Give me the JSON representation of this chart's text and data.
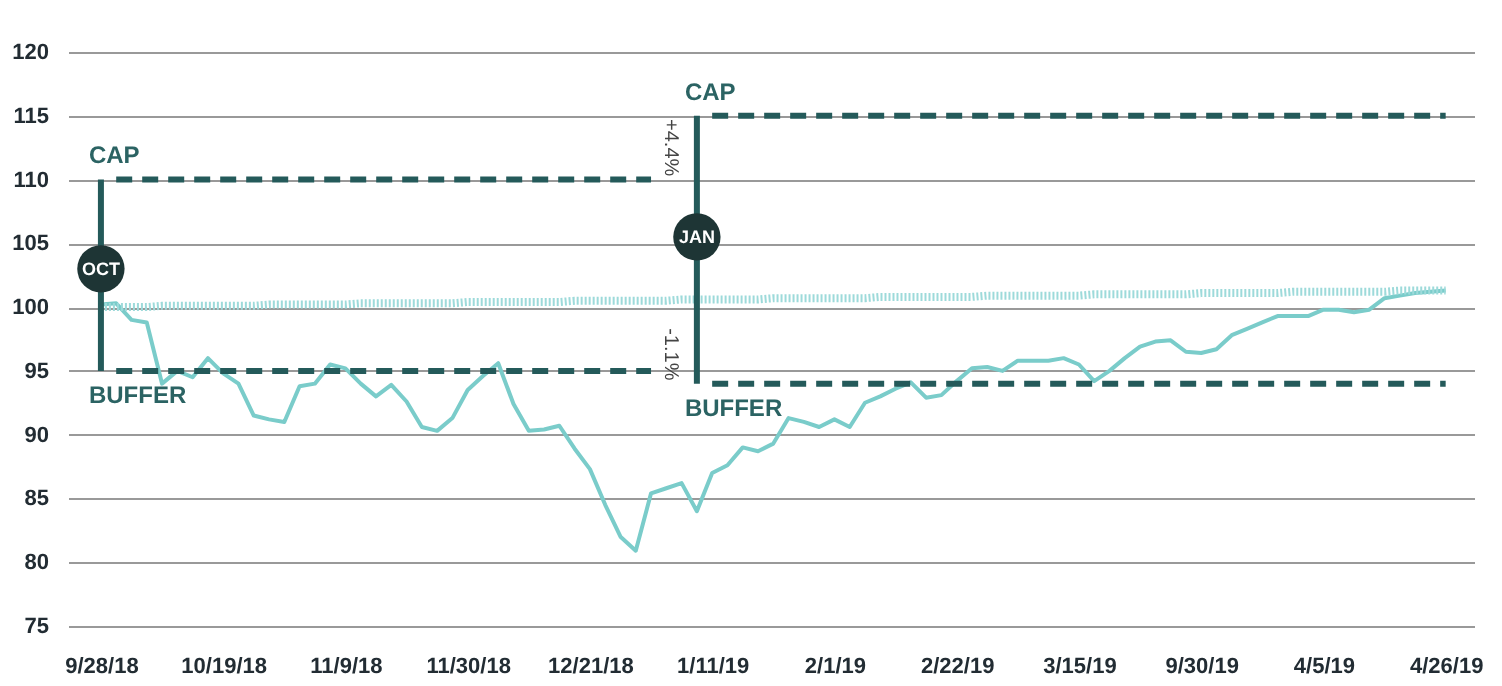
{
  "chart_data": {
    "type": "line",
    "categories": [
      "9/28/18",
      null,
      null,
      null,
      null,
      null,
      null,
      null,
      "10/19/18",
      null,
      null,
      null,
      null,
      null,
      null,
      null,
      "11/9/18",
      null,
      null,
      null,
      null,
      null,
      null,
      null,
      "11/30/18",
      null,
      null,
      null,
      null,
      null,
      null,
      null,
      "12/21/18",
      null,
      null,
      null,
      null,
      null,
      null,
      null,
      "1/11/19",
      null,
      null,
      null,
      null,
      null,
      null,
      null,
      "2/1/19",
      null,
      null,
      null,
      null,
      null,
      null,
      null,
      "2/22/19",
      null,
      null,
      null,
      null,
      null,
      null,
      null,
      "3/15/19",
      null,
      null,
      null,
      null,
      null,
      null,
      null,
      "9/30/19",
      null,
      null,
      null,
      null,
      null,
      null,
      null,
      "4/5/19",
      null,
      null,
      null,
      null,
      null,
      null,
      null,
      "4/26/19"
    ],
    "ylim": [
      75,
      120
    ],
    "yticks": [
      75,
      80,
      85,
      90,
      95,
      100,
      105,
      110,
      115,
      120
    ],
    "grid": "y",
    "series": [
      {
        "color": "#7accca",
        "line_style": "solid",
        "values": [
          100.2,
          100.3,
          99,
          98.8,
          94,
          95,
          94.5,
          96,
          94.8,
          94,
          91.5,
          91.2,
          91,
          93.8,
          94,
          95.5,
          95.2,
          94,
          93,
          93.9,
          92.6,
          90.6,
          90.3,
          91.3,
          93.5,
          94.6,
          95.6,
          92.4,
          90.3,
          90.4,
          90.7,
          88.9,
          87.3,
          84.5,
          82,
          80.9,
          85.4,
          85.8,
          86.2,
          84,
          87,
          87.6,
          89,
          88.7,
          89.3,
          91.3,
          91,
          90.6,
          91.2,
          90.6,
          92.5,
          93,
          93.6,
          94.1,
          92.9,
          93.1,
          94.2,
          95.2,
          95.3,
          95,
          95.8,
          95.8,
          95.8,
          96,
          95.5,
          94.2,
          95,
          96,
          96.9,
          97.3,
          97.4,
          96.5,
          96.4,
          96.7,
          97.8,
          98.3,
          98.8,
          99.3,
          99.3,
          99.3,
          99.8,
          99.8,
          99.6,
          99.8,
          100.7,
          100.9,
          101.1,
          101.2,
          101.3
        ]
      },
      {
        "color": "#9ddada",
        "line_style": "dotted",
        "values": [
          100,
          100,
          100,
          100,
          100.1,
          100.1,
          100.1,
          100.1,
          100.1,
          100.1,
          100.1,
          100.2,
          100.2,
          100.2,
          100.2,
          100.2,
          100.2,
          100.3,
          100.3,
          100.3,
          100.3,
          100.3,
          100.3,
          100.3,
          100.4,
          100.4,
          100.4,
          100.4,
          100.4,
          100.4,
          100.4,
          100.5,
          100.5,
          100.5,
          100.5,
          100.5,
          100.5,
          100.5,
          100.6,
          100.6,
          100.6,
          100.6,
          100.6,
          100.6,
          100.7,
          100.7,
          100.7,
          100.7,
          100.7,
          100.7,
          100.7,
          100.8,
          100.8,
          100.8,
          100.8,
          100.8,
          100.8,
          100.8,
          100.9,
          100.9,
          100.9,
          100.9,
          100.9,
          100.9,
          100.9,
          101,
          101,
          101,
          101,
          101,
          101,
          101,
          101.1,
          101.1,
          101.1,
          101.1,
          101.1,
          101.1,
          101.2,
          101.2,
          101.2,
          101.2,
          101.2,
          101.2,
          101.2,
          101.3,
          101.3,
          101.3,
          101.3
        ]
      },
      {
        "color": "#245a5a",
        "line_style": "dashed",
        "values": [
          null,
          110,
          110,
          110,
          110,
          110,
          110,
          110,
          110,
          110,
          110,
          110,
          110,
          110,
          110,
          110,
          110,
          110,
          110,
          110,
          110,
          110,
          110,
          110,
          110,
          110,
          110,
          110,
          110,
          110,
          110,
          110,
          110,
          110,
          110,
          110,
          110,
          null,
          null,
          null,
          null,
          null,
          null,
          null,
          null,
          null,
          null,
          null,
          null,
          null,
          null,
          null,
          null,
          null,
          null,
          null,
          null,
          null,
          null,
          null,
          null,
          null,
          null,
          null,
          null,
          null,
          null,
          null,
          null,
          null,
          null,
          null,
          null,
          null,
          null,
          null,
          null,
          null,
          null,
          null,
          null,
          null,
          null,
          null,
          null,
          null,
          null,
          null,
          null
        ]
      },
      {
        "color": "#245a5a",
        "line_style": "dashed",
        "values": [
          null,
          95,
          95,
          95,
          95,
          95,
          95,
          95,
          95,
          95,
          95,
          95,
          95,
          95,
          95,
          95,
          95,
          95,
          95,
          95,
          95,
          95,
          95,
          95,
          95,
          95,
          95,
          95,
          95,
          95,
          95,
          95,
          95,
          95,
          95,
          95,
          95,
          null,
          null,
          null,
          null,
          null,
          null,
          null,
          null,
          null,
          null,
          null,
          null,
          null,
          null,
          null,
          null,
          null,
          null,
          null,
          null,
          null,
          null,
          null,
          null,
          null,
          null,
          null,
          null,
          null,
          null,
          null,
          null,
          null,
          null,
          null,
          null,
          null,
          null,
          null,
          null,
          null,
          null,
          null,
          null,
          null,
          null,
          null,
          null,
          null,
          null,
          null,
          null
        ]
      },
      {
        "color": "#245a5a",
        "line_style": "dashed",
        "values": [
          null,
          null,
          null,
          null,
          null,
          null,
          null,
          null,
          null,
          null,
          null,
          null,
          null,
          null,
          null,
          null,
          null,
          null,
          null,
          null,
          null,
          null,
          null,
          null,
          null,
          null,
          null,
          null,
          null,
          null,
          null,
          null,
          null,
          null,
          null,
          null,
          null,
          null,
          null,
          null,
          115,
          115,
          115,
          115,
          115,
          115,
          115,
          115,
          115,
          115,
          115,
          115,
          115,
          115,
          115,
          115,
          115,
          115,
          115,
          115,
          115,
          115,
          115,
          115,
          115,
          115,
          115,
          115,
          115,
          115,
          115,
          115,
          115,
          115,
          115,
          115,
          115,
          115,
          115,
          115,
          115,
          115,
          115,
          115,
          115,
          115,
          115,
          115,
          115
        ]
      },
      {
        "color": "#245a5a",
        "line_style": "dashed",
        "values": [
          null,
          null,
          null,
          null,
          null,
          null,
          null,
          null,
          null,
          null,
          null,
          null,
          null,
          null,
          null,
          null,
          null,
          null,
          null,
          null,
          null,
          null,
          null,
          null,
          null,
          null,
          null,
          null,
          null,
          null,
          null,
          null,
          null,
          null,
          null,
          null,
          null,
          null,
          null,
          null,
          94,
          94,
          94,
          94,
          94,
          94,
          94,
          94,
          94,
          94,
          94,
          94,
          94,
          94,
          94,
          94,
          94,
          94,
          94,
          94,
          94,
          94,
          94,
          94,
          94,
          94,
          94,
          94,
          94,
          94,
          94,
          94,
          94,
          94,
          94,
          94,
          94,
          94,
          94,
          94,
          94,
          94,
          94,
          94,
          94,
          94,
          94,
          94,
          94
        ]
      },
      {
        "type": "bar",
        "color": "#245a5a",
        "base": [
          95,
          null,
          null,
          null,
          null,
          null,
          null,
          null,
          null,
          null,
          null,
          null,
          null,
          null,
          null,
          null,
          null,
          null,
          null,
          null,
          null,
          null,
          null,
          null,
          null,
          null,
          null,
          null,
          null,
          null,
          null,
          null,
          null,
          null,
          null,
          null,
          null,
          null,
          null,
          94,
          null,
          null,
          null,
          null,
          null,
          null,
          null,
          null,
          null,
          null,
          null,
          null,
          null,
          null,
          null,
          null,
          null,
          null,
          null,
          null,
          null,
          null,
          null,
          null,
          null,
          null,
          null,
          null,
          null,
          null,
          null,
          null,
          null,
          null,
          null,
          null,
          null,
          null,
          null,
          null,
          null,
          null,
          null,
          null,
          null,
          null,
          null,
          null,
          null
        ],
        "values": [
          15,
          null,
          null,
          null,
          null,
          null,
          null,
          null,
          null,
          null,
          null,
          null,
          null,
          null,
          null,
          null,
          null,
          null,
          null,
          null,
          null,
          null,
          null,
          null,
          null,
          null,
          null,
          null,
          null,
          null,
          null,
          null,
          null,
          null,
          null,
          null,
          null,
          null,
          null,
          21,
          null,
          null,
          null,
          null,
          null,
          null,
          null,
          null,
          null,
          null,
          null,
          null,
          null,
          null,
          null,
          null,
          null,
          null,
          null,
          null,
          null,
          null,
          null,
          null,
          null,
          null,
          null,
          null,
          null,
          null,
          null,
          null,
          null,
          null,
          null,
          null,
          null,
          null,
          null,
          null,
          null,
          null,
          null,
          null,
          null,
          null,
          null,
          null,
          null
        ]
      },
      {
        "type": "scatter",
        "color": "#1e3535",
        "marker": "circle",
        "values": [
          103,
          null,
          null,
          null,
          null,
          null,
          null,
          null,
          null,
          null,
          null,
          null,
          null,
          null,
          null,
          null,
          null,
          null,
          null,
          null,
          null,
          null,
          null,
          null,
          null,
          null,
          null,
          null,
          null,
          null,
          null,
          null,
          null,
          null,
          null,
          null,
          null,
          null,
          null,
          105.5,
          null,
          null,
          null,
          null,
          null,
          null,
          null,
          null,
          null,
          null,
          null,
          null,
          null,
          null,
          null,
          null,
          null,
          null,
          null,
          null,
          null,
          null,
          null,
          null,
          null,
          null,
          null,
          null,
          null,
          null,
          null,
          null,
          null,
          null,
          null,
          null,
          null,
          null,
          null,
          null,
          null,
          null,
          null,
          null,
          null,
          null,
          null,
          null,
          null
        ]
      }
    ],
    "annotations": [
      "CAP",
      "BUFFER",
      "CAP",
      "BUFFER",
      "OCT",
      "JAN",
      "+4.4%",
      "-1.1%"
    ]
  }
}
